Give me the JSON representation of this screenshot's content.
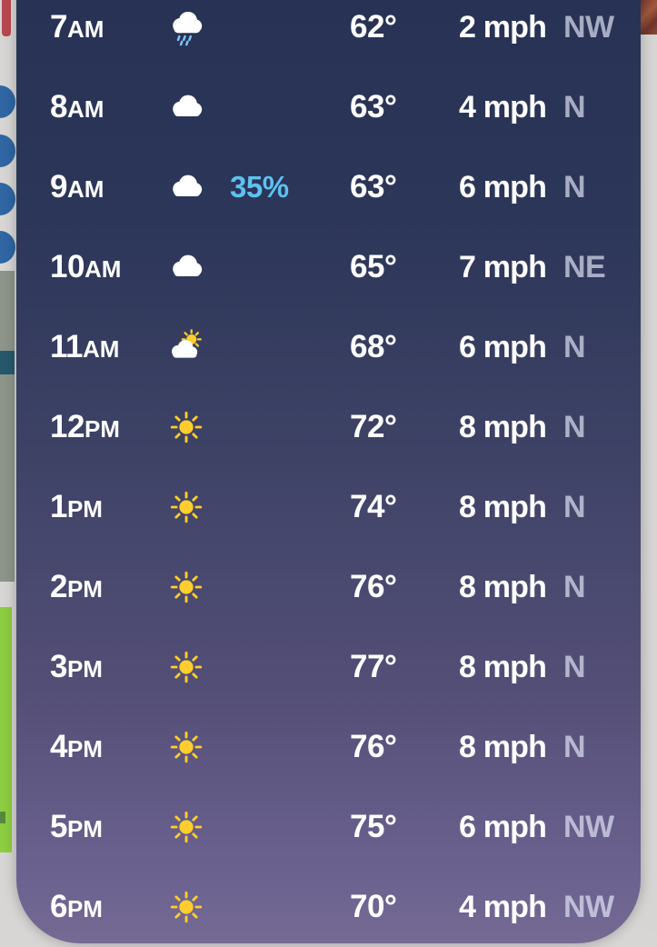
{
  "app": {
    "name": "weather-hourly-forecast-sheet"
  },
  "colors": {
    "panel_gradient_top": "#273254",
    "panel_gradient_middle": "#3e4366",
    "panel_gradient_bottom": "#746a93",
    "precip_accent": "#5ec1f1",
    "sun_yellow": "#ffcd2e",
    "cloud_white": "#ffffff",
    "drizzle_blue": "#82c4f5",
    "direction_text": "rgba(232,236,252,0.66)",
    "primary_text": "#ffffff"
  },
  "hourly_rows": [
    {
      "time": "7",
      "period": "AM",
      "condition": "cloud-drizzle",
      "precip": "",
      "temp": "62°",
      "wind": "2 mph",
      "direction": "NW"
    },
    {
      "time": "8",
      "period": "AM",
      "condition": "cloud",
      "precip": "",
      "temp": "63°",
      "wind": "4 mph",
      "direction": "N"
    },
    {
      "time": "9",
      "period": "AM",
      "condition": "cloud",
      "precip": "35%",
      "temp": "63°",
      "wind": "6 mph",
      "direction": "N"
    },
    {
      "time": "10",
      "period": "AM",
      "condition": "cloud",
      "precip": "",
      "temp": "65°",
      "wind": "7 mph",
      "direction": "NE"
    },
    {
      "time": "11",
      "period": "AM",
      "condition": "sun-behind-cloud",
      "precip": "",
      "temp": "68°",
      "wind": "6 mph",
      "direction": "N"
    },
    {
      "time": "12",
      "period": "PM",
      "condition": "sun",
      "precip": "",
      "temp": "72°",
      "wind": "8 mph",
      "direction": "N"
    },
    {
      "time": "1",
      "period": "PM",
      "condition": "sun",
      "precip": "",
      "temp": "74°",
      "wind": "8 mph",
      "direction": "N"
    },
    {
      "time": "2",
      "period": "PM",
      "condition": "sun",
      "precip": "",
      "temp": "76°",
      "wind": "8 mph",
      "direction": "N"
    },
    {
      "time": "3",
      "period": "PM",
      "condition": "sun",
      "precip": "",
      "temp": "77°",
      "wind": "8 mph",
      "direction": "N"
    },
    {
      "time": "4",
      "period": "PM",
      "condition": "sun",
      "precip": "",
      "temp": "76°",
      "wind": "8 mph",
      "direction": "N"
    },
    {
      "time": "5",
      "period": "PM",
      "condition": "sun",
      "precip": "",
      "temp": "75°",
      "wind": "6 mph",
      "direction": "NW"
    },
    {
      "time": "6",
      "period": "PM",
      "condition": "sun",
      "precip": "",
      "temp": "70°",
      "wind": "4 mph",
      "direction": "NW"
    }
  ]
}
